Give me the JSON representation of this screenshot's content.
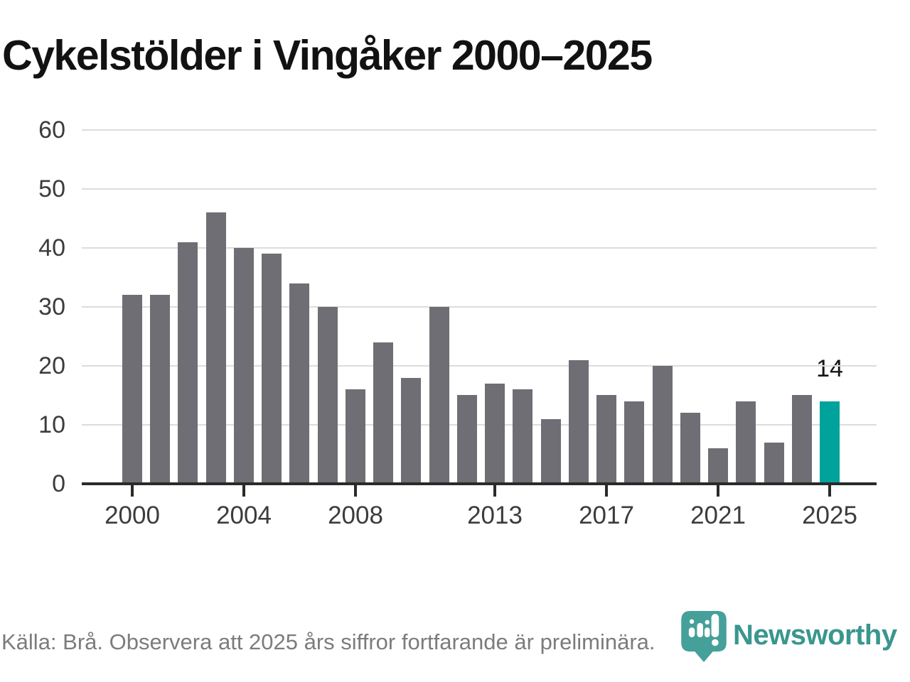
{
  "title": "Cykelstölder i Vingåker 2000–2025",
  "footer": {
    "source_note": "Källa: Brå. Observera att 2025 års siffror fortfarande är preliminära."
  },
  "logo": {
    "text": "Newsworthy",
    "icon": "newsworthy-pin-icon",
    "color": "#3a968f",
    "pin_color": "#45a09a"
  },
  "colors": {
    "bar_default": "#6e6e74",
    "bar_highlight": "#00a39b",
    "gridline": "#dcdcdc",
    "axis": "#2a2a2a",
    "tick_text": "#3c3c3c",
    "title_text": "#121212",
    "footer_text": "#7c7c7c"
  },
  "chart_data": {
    "type": "bar",
    "title": "Cykelstölder i Vingåker 2000–2025",
    "categories": [
      2000,
      2001,
      2002,
      2003,
      2004,
      2005,
      2006,
      2007,
      2008,
      2009,
      2010,
      2011,
      2012,
      2013,
      2014,
      2015,
      2016,
      2017,
      2018,
      2019,
      2020,
      2021,
      2022,
      2023,
      2024,
      2025
    ],
    "values": [
      32,
      32,
      41,
      46,
      40,
      39,
      34,
      30,
      16,
      24,
      18,
      30,
      15,
      17,
      16,
      11,
      21,
      15,
      14,
      20,
      12,
      6,
      14,
      7,
      15,
      14
    ],
    "highlight_index": 25,
    "highlight_label": "14",
    "xlabel": "",
    "ylabel": "",
    "ylim": [
      0,
      60
    ],
    "y_ticks": [
      0,
      10,
      20,
      30,
      40,
      50,
      60
    ],
    "x_tick_indices": [
      0,
      4,
      8,
      13,
      17,
      21,
      25
    ],
    "x_tick_labels": [
      "2000",
      "2004",
      "2008",
      "2013",
      "2017",
      "2021",
      "2025"
    ],
    "grid": true,
    "legend": false
  }
}
